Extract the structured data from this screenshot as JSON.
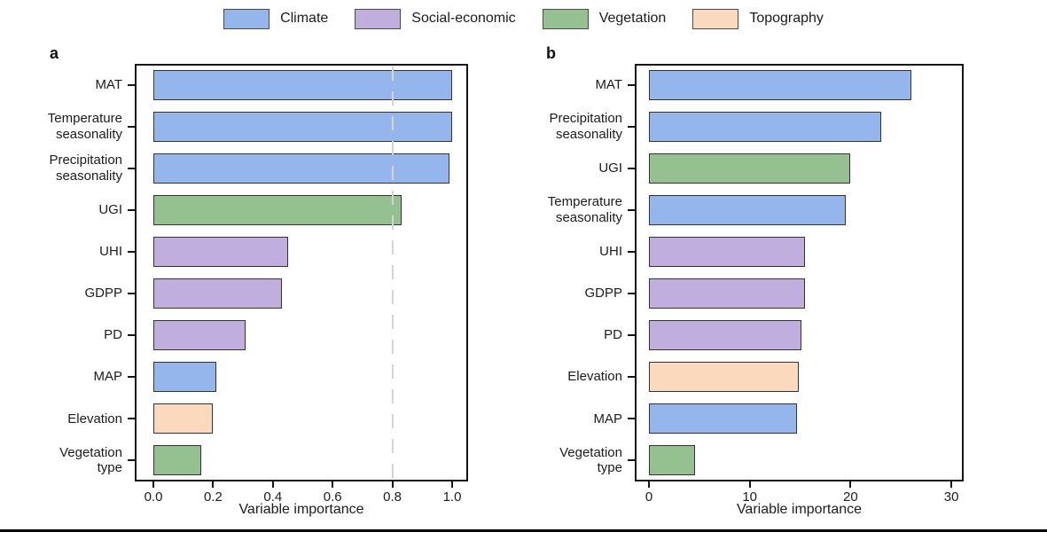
{
  "legend": {
    "items": [
      {
        "label": "Climate",
        "color": "#95b6ec"
      },
      {
        "label": "Social-economic",
        "color": "#bfaede"
      },
      {
        "label": "Vegetation",
        "color": "#95c08f"
      },
      {
        "label": "Topography",
        "color": "#fad9bc"
      }
    ]
  },
  "chart_data": [
    {
      "id": "a",
      "type": "bar",
      "orientation": "horizontal",
      "panel_label": "a",
      "xlabel": "Variable importance",
      "xlim": [
        -0.06,
        1.05
      ],
      "grid": false,
      "xticks": [
        0.0,
        0.2,
        0.4,
        0.6,
        0.8,
        1.0
      ],
      "xtick_labels": [
        "0.0",
        "0.2",
        "0.4",
        "0.6",
        "0.8",
        "1.0"
      ],
      "reference_line": {
        "x": 0.8,
        "style": "dashed",
        "color": "#d4d4d4"
      },
      "categories": [
        "MAT",
        "Temperature seasonality",
        "Precipitation seasonality",
        "UGI",
        "UHI",
        "GDPP",
        "PD",
        "MAP",
        "Elevation",
        "Vegetation type"
      ],
      "values": [
        1.0,
        1.0,
        0.99,
        0.83,
        0.45,
        0.43,
        0.31,
        0.21,
        0.2,
        0.16
      ],
      "groups": [
        "Climate",
        "Climate",
        "Climate",
        "Vegetation",
        "Social-economic",
        "Social-economic",
        "Social-economic",
        "Climate",
        "Topography",
        "Vegetation"
      ]
    },
    {
      "id": "b",
      "type": "bar",
      "orientation": "horizontal",
      "panel_label": "b",
      "xlabel": "Variable importance",
      "xlim": [
        -1.4,
        31.2
      ],
      "grid": false,
      "xticks": [
        0,
        10,
        20,
        30
      ],
      "xtick_labels": [
        "0",
        "10",
        "20",
        "30"
      ],
      "reference_line": null,
      "categories": [
        "MAT",
        "Precipitation seasonality",
        "UGI",
        "Temperature seasonality",
        "UHI",
        "GDPP",
        "PD",
        "Elevation",
        "MAP",
        "Vegetation type"
      ],
      "values": [
        26.0,
        23.0,
        20.0,
        19.5,
        15.5,
        15.5,
        15.1,
        14.9,
        14.7,
        4.6
      ],
      "groups": [
        "Climate",
        "Climate",
        "Vegetation",
        "Climate",
        "Social-economic",
        "Social-economic",
        "Social-economic",
        "Topography",
        "Climate",
        "Vegetation"
      ]
    }
  ]
}
